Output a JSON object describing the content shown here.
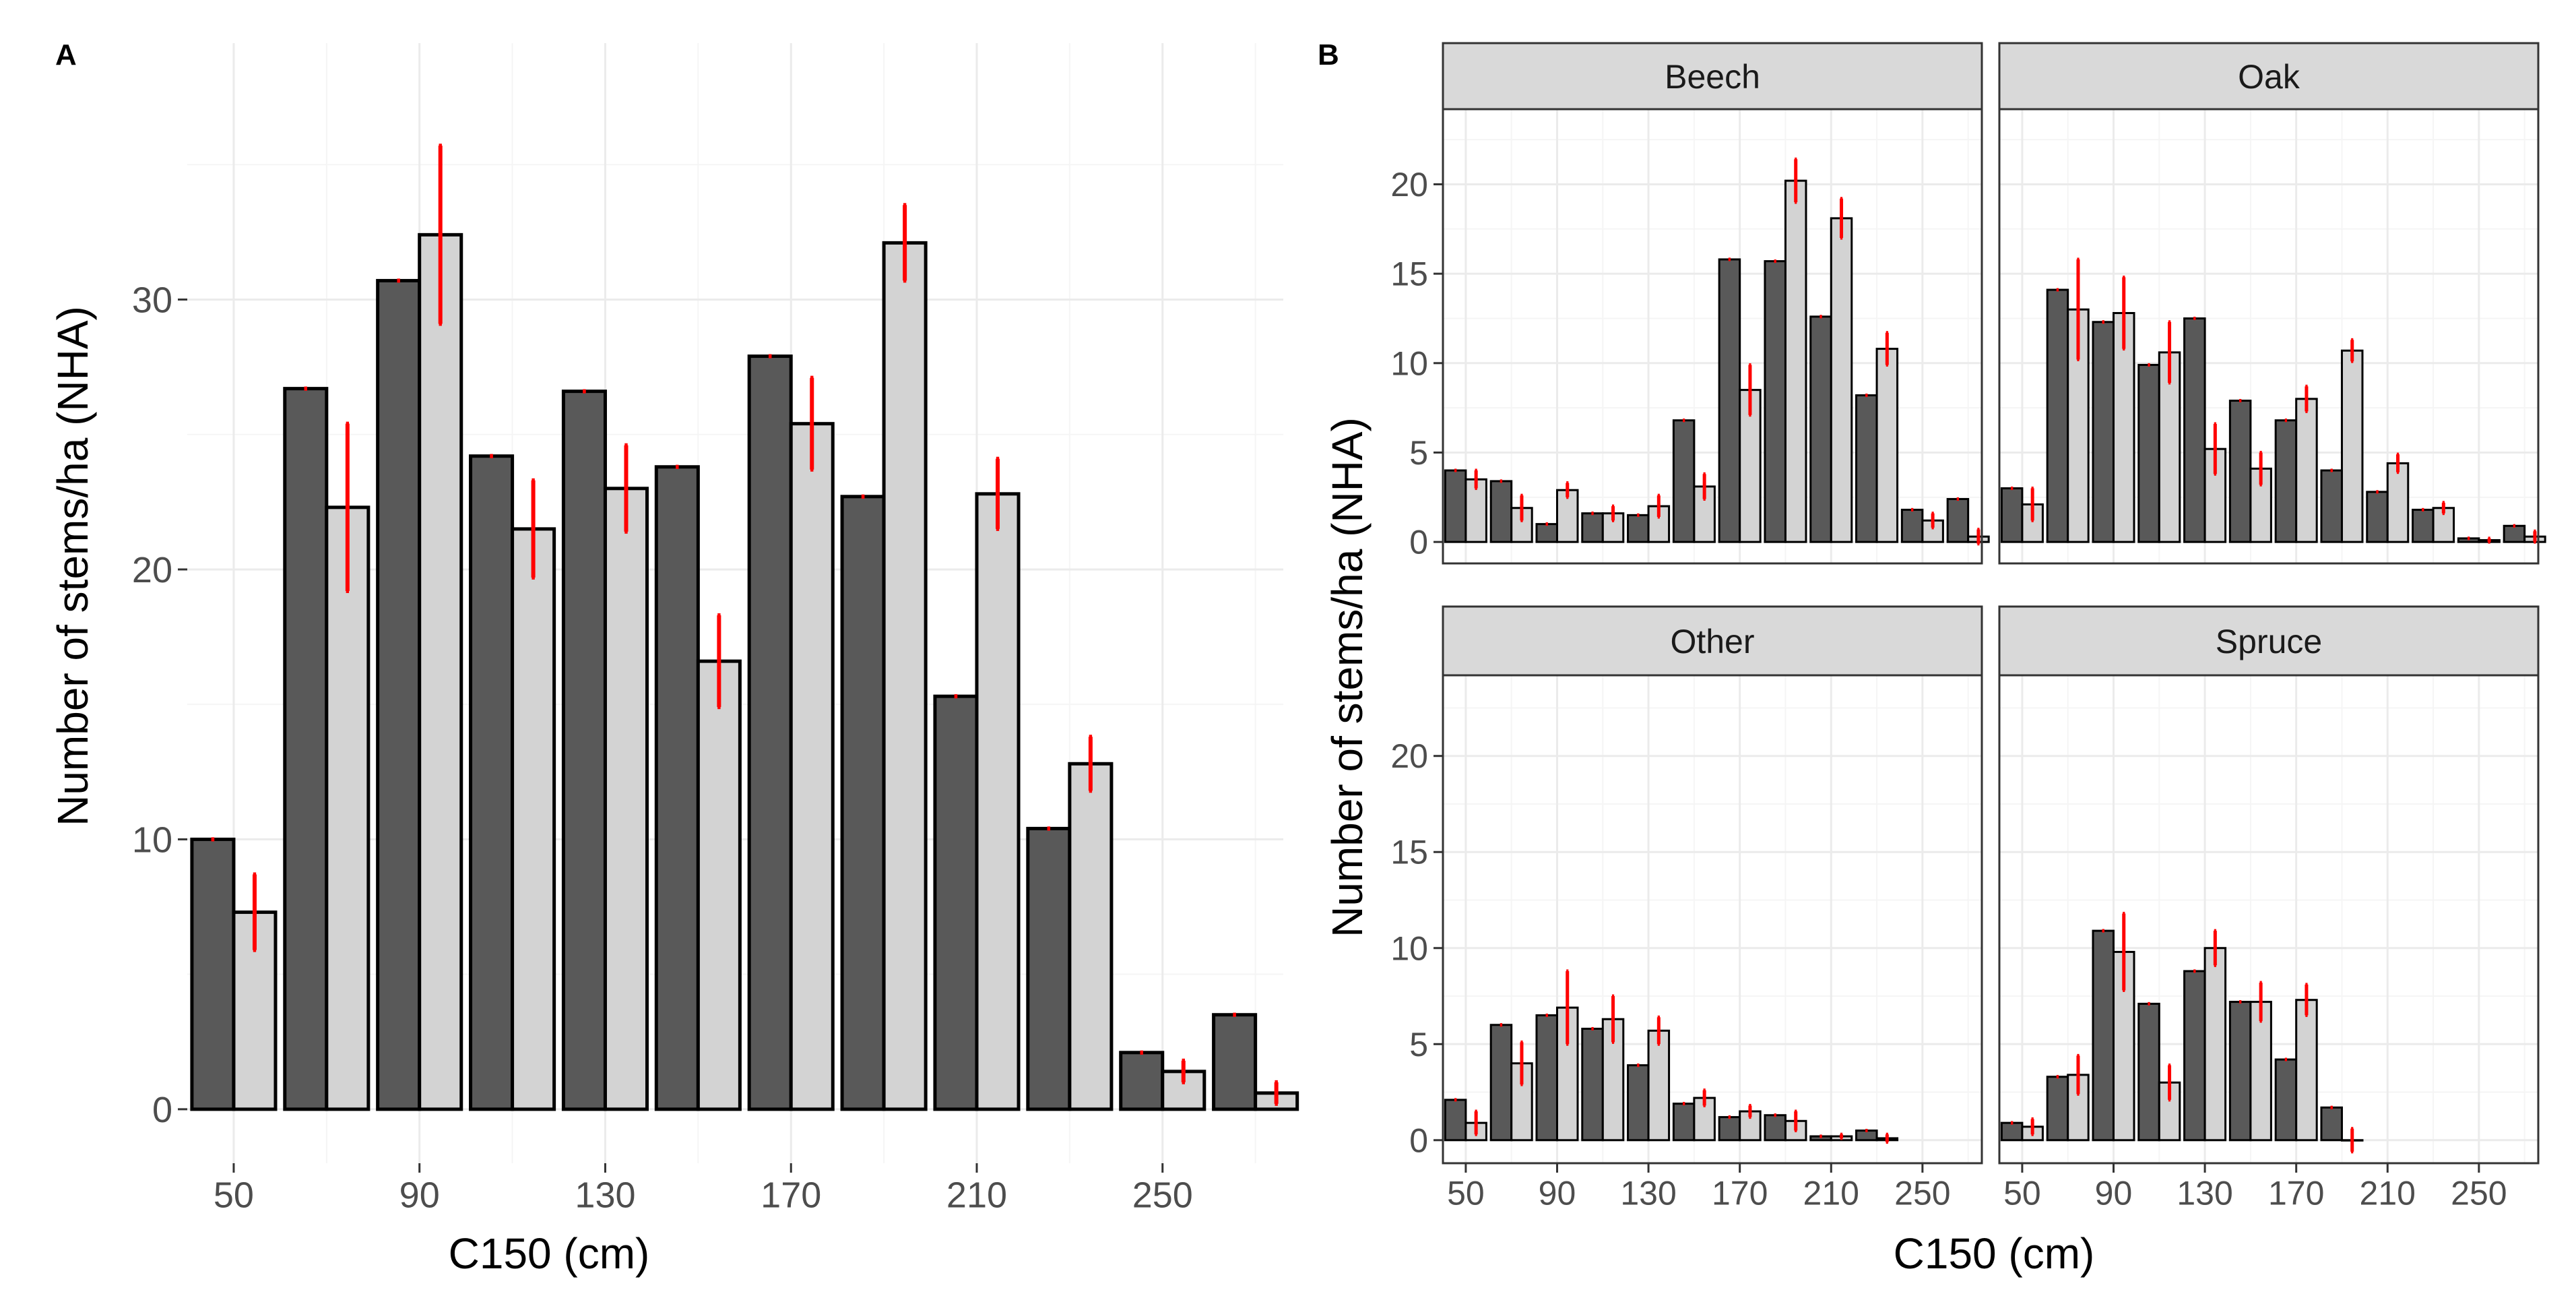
{
  "colors": {
    "dark_bar": "#595959",
    "light_bar": "#d3d3d3",
    "error_bar": "#ff0000",
    "bar_outline": "#000000",
    "grid_major": "#ebebeb",
    "grid_minor": "#f5f5f5",
    "strip_fill": "#d9d9d9",
    "strip_border": "#333333",
    "tick_text": "#4d4d4d"
  },
  "panel_labels": {
    "a": "A",
    "b": "B"
  },
  "chart_data": [
    {
      "type": "bar",
      "panel": "A",
      "xlabel": "C150 (cm)",
      "ylabel": "Number of stems/ha (NHA)",
      "x_ticks": [
        50,
        90,
        130,
        170,
        210,
        250
      ],
      "y_ticks": [
        0,
        10,
        20,
        30
      ],
      "xlim": [
        40,
        276
      ],
      "ylim": [
        -2,
        39.5
      ],
      "grid": true,
      "legend": "none",
      "categories": [
        50,
        70,
        90,
        110,
        130,
        150,
        170,
        190,
        210,
        230,
        250,
        270
      ],
      "series": [
        {
          "values": [
            10.0,
            26.7,
            30.7,
            24.2,
            26.6,
            23.8,
            27.9,
            22.7,
            15.3,
            10.4,
            2.1,
            3.5
          ],
          "error": [
            0,
            0,
            0,
            0,
            0,
            0,
            0,
            0,
            0,
            0,
            0,
            0
          ]
        },
        {
          "values": [
            7.3,
            22.3,
            32.4,
            21.5,
            23.0,
            16.6,
            25.4,
            32.1,
            22.8,
            12.8,
            1.4,
            0.6
          ],
          "error": [
            1.4,
            3.1,
            3.3,
            1.8,
            1.6,
            1.7,
            1.7,
            1.4,
            1.3,
            1.0,
            0.4,
            0.4
          ]
        }
      ]
    },
    {
      "type": "bar",
      "panel": "B",
      "xlabel": "C150 (cm)",
      "ylabel": "Number of stems/ha (NHA)",
      "x_ticks": [
        50,
        90,
        130,
        170,
        210,
        250
      ],
      "y_ticks": [
        0,
        5,
        10,
        15,
        20
      ],
      "xlim": [
        40,
        276
      ],
      "ylim": [
        -1.2,
        24.2
      ],
      "grid": true,
      "legend": "none",
      "categories": [
        50,
        70,
        90,
        110,
        130,
        150,
        170,
        190,
        210,
        230,
        250,
        270
      ],
      "facets": [
        {
          "title": "Beech",
          "series": [
            {
              "values": [
                4.0,
                3.4,
                1.0,
                1.6,
                1.5,
                6.8,
                15.8,
                15.7,
                12.6,
                8.2,
                1.8,
                2.4
              ],
              "error": [
                0,
                0,
                0,
                0,
                0,
                0,
                0,
                0,
                0,
                0,
                0,
                0
              ]
            },
            {
              "values": [
                3.5,
                1.9,
                2.9,
                1.6,
                2.0,
                3.1,
                8.5,
                20.2,
                18.1,
                10.8,
                1.2,
                0.3
              ],
              "error": [
                0.5,
                0.7,
                0.4,
                0.4,
                0.6,
                0.7,
                1.4,
                1.2,
                1.1,
                0.9,
                0.4,
                0.4
              ]
            }
          ]
        },
        {
          "title": "Oak",
          "series": [
            {
              "values": [
                3.0,
                14.1,
                12.3,
                9.9,
                12.5,
                7.9,
                6.8,
                4.0,
                2.8,
                1.8,
                0.2,
                0.9
              ],
              "error": [
                0,
                0,
                0,
                0,
                0,
                0,
                0,
                0,
                0,
                0,
                0,
                0
              ]
            },
            {
              "values": [
                2.1,
                13.0,
                12.8,
                10.6,
                5.2,
                4.1,
                8.0,
                10.7,
                4.4,
                1.9,
                0.1,
                0.3
              ],
              "error": [
                0.9,
                2.8,
                2.0,
                1.7,
                1.4,
                0.9,
                0.7,
                0.6,
                0.5,
                0.3,
                0.1,
                0.3
              ]
            }
          ]
        },
        {
          "title": "Other",
          "series": [
            {
              "values": [
                2.1,
                6.0,
                6.5,
                5.8,
                3.9,
                1.9,
                1.2,
                1.3,
                0.2,
                0.5,
                null,
                null
              ],
              "error": [
                0,
                0,
                0,
                0,
                0,
                0,
                0,
                0,
                0,
                0,
                null,
                null
              ]
            },
            {
              "values": [
                0.9,
                4.0,
                6.9,
                6.3,
                5.7,
                2.2,
                1.5,
                1.0,
                0.2,
                0.1,
                null,
                null
              ],
              "error": [
                0.6,
                1.1,
                1.9,
                1.2,
                0.7,
                0.4,
                0.3,
                0.5,
                0.1,
                0.2,
                null,
                null
              ]
            }
          ]
        },
        {
          "title": "Spruce",
          "series": [
            {
              "values": [
                0.9,
                3.3,
                10.9,
                7.1,
                8.8,
                7.2,
                4.2,
                1.7,
                null,
                null,
                null,
                null
              ],
              "error": [
                0,
                0,
                0,
                0,
                0,
                0,
                0,
                0,
                null,
                null,
                null,
                null
              ]
            },
            {
              "values": [
                0.7,
                3.4,
                9.8,
                3.0,
                10.0,
                7.2,
                7.3,
                0.0,
                null,
                null,
                null,
                null
              ],
              "error": [
                0.4,
                1.0,
                2.0,
                0.9,
                0.9,
                1.0,
                0.8,
                0.6,
                null,
                null,
                null,
                null
              ]
            }
          ]
        }
      ]
    }
  ]
}
